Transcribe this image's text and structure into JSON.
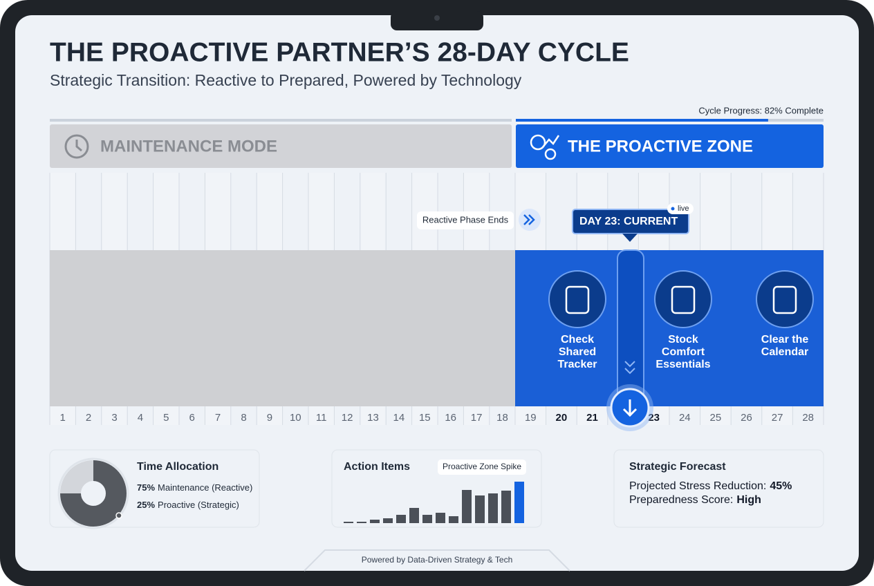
{
  "header": {
    "title": "THE PROACTIVE PARTNER’S 28-DAY CYCLE",
    "subtitle": "Strategic Transition: Reactive to Prepared, Powered by Technology"
  },
  "progress": {
    "label": "Cycle Progress: 82% Complete",
    "value": 82
  },
  "phases": {
    "maintenance": "MAINTENANCE MODE",
    "proactive": "THE PROACTIVE ZONE"
  },
  "timeline": {
    "days": [
      1,
      2,
      3,
      4,
      5,
      6,
      7,
      8,
      9,
      10,
      11,
      12,
      13,
      14,
      15,
      16,
      17,
      18,
      19,
      20,
      21,
      null,
      23,
      24,
      25,
      26,
      27,
      28
    ],
    "reactive_end": "Reactive Phase Ends",
    "current": "DAY 23: CURRENT",
    "live": "live"
  },
  "tasks": [
    {
      "lines": [
        "Check",
        "Shared",
        "Tracker"
      ]
    },
    {
      "lines": [
        "Stock",
        "Comfort",
        "Essentials"
      ]
    },
    {
      "lines": [
        "Clear the",
        "Calendar"
      ]
    }
  ],
  "time_allocation": {
    "title": "Time Allocation",
    "segments": [
      {
        "value": 75,
        "value_label": "75%",
        "label": "Maintenance (Reactive)",
        "color": "#55595f"
      },
      {
        "value": 25,
        "value_label": "25%",
        "label": "Proactive (Strategic)",
        "color": "#d3d6db"
      }
    ]
  },
  "action_items": {
    "title": "Action Items",
    "annotation": "Proactive Zone Spike",
    "values": [
      2,
      2,
      5,
      7,
      12,
      22,
      12,
      15,
      10,
      48,
      40,
      43,
      47,
      60
    ],
    "colors": [
      "#4b5058",
      "#4b5058",
      "#4b5058",
      "#4b5058",
      "#4b5058",
      "#4b5058",
      "#4b5058",
      "#4b5058",
      "#4b5058",
      "#4b5058",
      "#4b5058",
      "#4b5058",
      "#4b5058",
      "#1463e0"
    ]
  },
  "forecast": {
    "title": "Strategic Forecast",
    "rows": [
      {
        "label": "Projected Stress Reduction:",
        "value": "45%"
      },
      {
        "label": "Preparedness Score:",
        "value": "High"
      }
    ]
  },
  "footer": "Powered by Data-Driven Strategy & Tech"
}
